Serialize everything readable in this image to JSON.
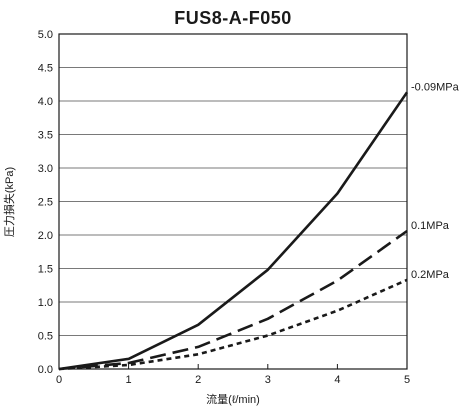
{
  "chart_data": {
    "type": "line",
    "title": "FUS8-A-F050",
    "xlabel": "流量(ℓ/min)",
    "ylabel": "圧力損失(kPa)",
    "xlim": [
      0,
      5
    ],
    "ylim": [
      0,
      5.0
    ],
    "x_ticks": [
      "0",
      "1",
      "2",
      "3",
      "4",
      "5"
    ],
    "y_ticks": [
      "0.0",
      "0.5",
      "1.0",
      "1.5",
      "2.0",
      "2.5",
      "3.0",
      "3.5",
      "4.0",
      "4.5",
      "5.0"
    ],
    "grid": "horizontal",
    "x": [
      0,
      1,
      2,
      3,
      4,
      5
    ],
    "series": [
      {
        "name": "-0.09MPa",
        "line_style": "solid",
        "values": [
          0,
          0.15,
          0.66,
          1.48,
          2.62,
          4.13
        ]
      },
      {
        "name": "0.1MPa",
        "line_style": "long-dash",
        "values": [
          0,
          0.09,
          0.33,
          0.75,
          1.32,
          2.06
        ]
      },
      {
        "name": "0.2MPa",
        "line_style": "short-dash",
        "values": [
          0,
          0.06,
          0.22,
          0.5,
          0.87,
          1.33
        ]
      }
    ],
    "colors": {
      "line": "#1a1a1a",
      "grid": "#4d4d4d",
      "axis": "#1a1a1a"
    }
  }
}
